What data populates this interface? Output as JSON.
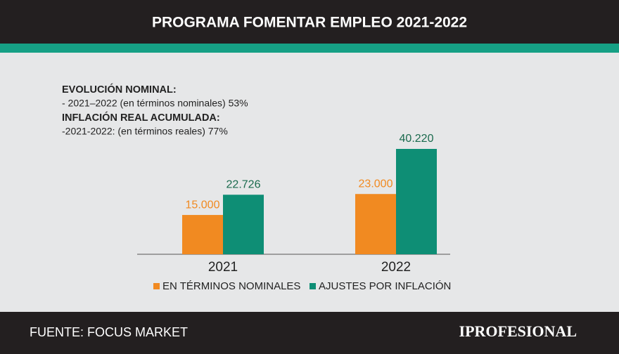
{
  "chart_data": {
    "type": "bar",
    "title": "PROGRAMA FOMENTAR EMPLEO 2021-2022",
    "annotations": [
      "EVOLUCIÓN NOMINAL:",
      "- 2021–2022 (en términos nominales) 53%",
      "INFLACIÓN REAL ACUMULADA:",
      "-2021-2022: (en términos reales) 77%"
    ],
    "categories": [
      "2021",
      "2022"
    ],
    "series": [
      {
        "name": "EN TÉRMINOS NOMINALES",
        "color": "#f18a21",
        "label_color": "#f18a21",
        "values": [
          15000,
          23000
        ],
        "value_labels": [
          "15.000",
          "23.000"
        ]
      },
      {
        "name": "AJUSTES POR INFLACIÓN",
        "color": "#0e8e75",
        "label_color": "#1a6a4d",
        "values": [
          22726,
          40220
        ],
        "value_labels": [
          "22.726",
          "40.220"
        ]
      }
    ]
  },
  "footer": {
    "source": "FUENTE: FOCUS MARKET",
    "brand": "IPROFESIONAL"
  }
}
